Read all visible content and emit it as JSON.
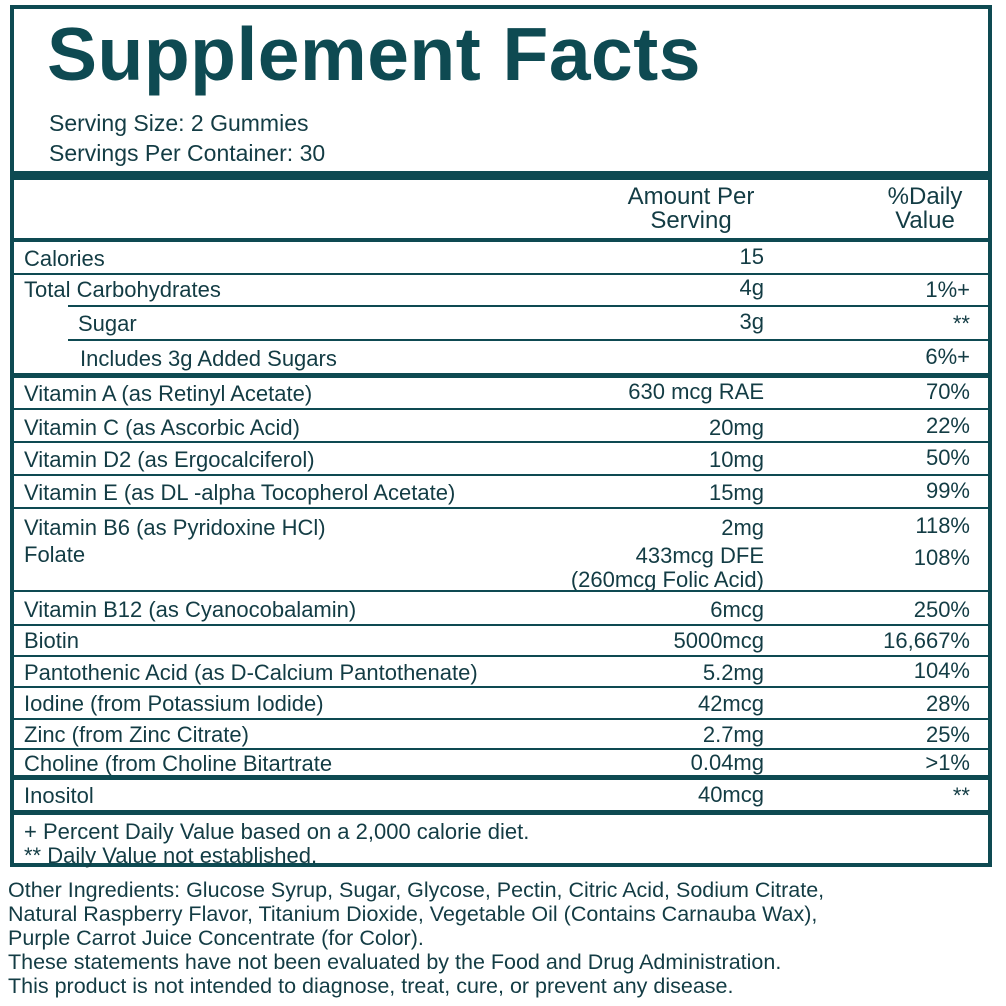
{
  "panel": {
    "title": "Supplement Facts",
    "serving_size": "Serving Size: 2 Gummies",
    "servings_per_container": "Servings Per Container: 30",
    "col_amount_line1": "Amount Per",
    "col_amount_line2": "Serving",
    "col_dv_line1": "%Daily",
    "col_dv_line2": "Value"
  },
  "rows": [
    {
      "name": "Calories",
      "amount": "15",
      "dv": ""
    },
    {
      "name": "Total Carbohydrates",
      "amount": "4g",
      "dv": "1%+"
    },
    {
      "name": "Sugar",
      "amount": "3g",
      "dv": "**"
    },
    {
      "name": "Includes 3g Added Sugars",
      "amount": "",
      "dv": "6%+"
    },
    {
      "name": "Vitamin A (as Retinyl Acetate)",
      "amount": "630 mcg RAE",
      "dv": "70%"
    },
    {
      "name": "Vitamin C (as Ascorbic Acid)",
      "amount": "20mg",
      "dv": "22%"
    },
    {
      "name": "Vitamin D2 (as Ergocalciferol)",
      "amount": "10mg",
      "dv": "50%"
    },
    {
      "name": "Vitamin E (as DL -alpha Tocopherol Acetate)",
      "amount": "15mg",
      "dv": "99%"
    },
    {
      "name": "Vitamin B6 (as Pyridoxine HCl)",
      "amount": "2mg",
      "dv": "118%"
    },
    {
      "name": "Folate",
      "amount": "433mcg DFE",
      "amount2": "(260mcg Folic Acid)",
      "dv": "108%"
    },
    {
      "name": "Vitamin B12 (as Cyanocobalamin)",
      "amount": "6mcg",
      "dv": "250%"
    },
    {
      "name": "Biotin",
      "amount": "5000mcg",
      "dv": "16,667%"
    },
    {
      "name": "Pantothenic Acid (as D-Calcium Pantothenate)",
      "amount": "5.2mg",
      "dv": "104%"
    },
    {
      "name": "Iodine (from Potassium Iodide)",
      "amount": "42mcg",
      "dv": "28%"
    },
    {
      "name": "Zinc (from Zinc Citrate)",
      "amount": "2.7mg",
      "dv": "25%"
    },
    {
      "name": "Choline (from Choline Bitartrate",
      "amount": "0.04mg",
      "dv": ">1%"
    },
    {
      "name": "Inositol",
      "amount": "40mcg",
      "dv": "**"
    }
  ],
  "footnotes": {
    "percent_note": "+ Percent Daily Value based on a 2,000 calorie diet.",
    "not_established": "** Daily Value not established."
  },
  "other": {
    "ingredients_line1": "Other Ingredients: Glucose Syrup, Sugar, Glycose, Pectin, Citric Acid, Sodium Citrate,",
    "ingredients_line2": "Natural Raspberry Flavor, Titanium Dioxide, Vegetable Oil (Contains Carnauba Wax),",
    "ingredients_line3": "Purple Carrot Juice Concentrate (for Color).",
    "disclaimer_line1": "These statements have not been evaluated by the Food and Drug Administration.",
    "disclaimer_line2": "This product is not intended to diagnose, treat, cure, or prevent any disease."
  }
}
